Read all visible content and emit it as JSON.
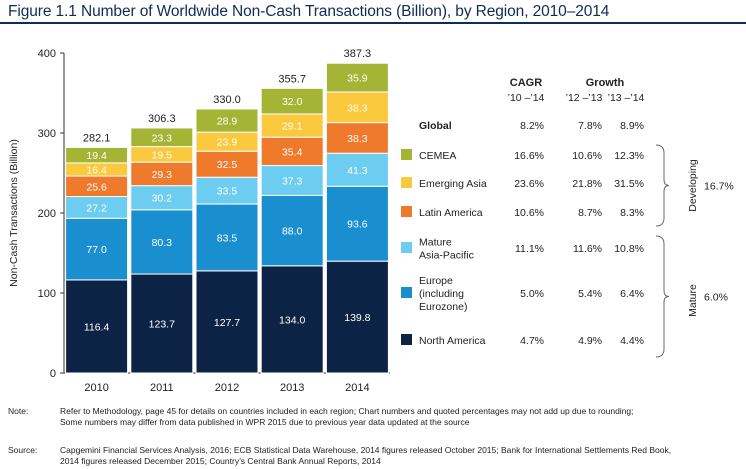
{
  "title": "Figure 1.1 Number of Worldwide Non-Cash Transactions (Billion), by Region, 2010–2014",
  "chart_data": {
    "type": "bar",
    "stacked": true,
    "ylabel": "Non-Cash Transactions (Billion)",
    "ylim": [
      0,
      400
    ],
    "yticks": [
      "0",
      "100",
      "200",
      "300",
      "400"
    ],
    "grid": false,
    "categories": [
      "2010",
      "2011",
      "2012",
      "2013",
      "2014"
    ],
    "totals": [
      "282.1",
      "306.3",
      "330.0",
      "355.7",
      "387.3"
    ],
    "series": [
      {
        "name": "North America",
        "color": "#0d2346",
        "values": [
          116.4,
          123.7,
          127.7,
          134.0,
          139.8
        ]
      },
      {
        "name": "Europe (including Eurozone)",
        "color": "#1a8fd0",
        "values": [
          77.0,
          80.3,
          83.5,
          88.0,
          93.6
        ]
      },
      {
        "name": "Mature Asia-Pacific",
        "color": "#6dcdf0",
        "values": [
          27.2,
          30.2,
          33.5,
          37.3,
          41.3
        ]
      },
      {
        "name": "Latin America",
        "color": "#ef7a2b",
        "values": [
          25.6,
          29.3,
          32.5,
          35.4,
          38.3
        ]
      },
      {
        "name": "Emerging Asia",
        "color": "#fbc93d",
        "values": [
          16.4,
          19.5,
          23.9,
          29.1,
          38.3
        ]
      },
      {
        "name": "CEMEA",
        "color": "#a4b536",
        "values": [
          19.4,
          23.3,
          28.9,
          32.0,
          35.9
        ]
      }
    ],
    "table": {
      "headers": {
        "cagr": "CAGR",
        "cagr_sub": "’10 –’14",
        "growth": "Growth",
        "g1": "’12 –’13",
        "g2": "’13 –’14"
      },
      "rows": [
        {
          "label": "Global",
          "label2": "",
          "color": "",
          "cagr": "8.2%",
          "g1": "7.8%",
          "g2": "8.9%"
        },
        {
          "label": "CEMEA",
          "label2": "",
          "color": "#a4b536",
          "cagr": "16.6%",
          "g1": "10.6%",
          "g2": "12.3%"
        },
        {
          "label": "Emerging Asia",
          "label2": "",
          "color": "#fbc93d",
          "cagr": "23.6%",
          "g1": "21.8%",
          "g2": "31.5%"
        },
        {
          "label": "Latin America",
          "label2": "",
          "color": "#ef7a2b",
          "cagr": "10.6%",
          "g1": "8.7%",
          "g2": "8.3%"
        },
        {
          "label": "Mature",
          "label2": "Asia-Pacific",
          "label3": "",
          "color": "#6dcdf0",
          "cagr": "11.1%",
          "g1": "11.6%",
          "g2": "10.8%"
        },
        {
          "label": "Europe",
          "label2": "(including",
          "label3": "Eurozone)",
          "color": "#1a8fd0",
          "cagr": "5.0%",
          "g1": "5.4%",
          "g2": "6.4%"
        },
        {
          "label": "North America",
          "label2": "",
          "color": "#0d2346",
          "cagr": "4.7%",
          "g1": "4.9%",
          "g2": "4.4%"
        }
      ],
      "groups": [
        {
          "name": "Developing",
          "value": "16.7%"
        },
        {
          "name": "Mature",
          "value": "6.0%"
        }
      ]
    }
  },
  "note": {
    "label": "Note:",
    "lines": [
      "Refer to Methodology, page 45 for details on countries included in each region; Chart numbers and quoted percentages may not add up due to rounding;",
      "Some numbers may differ from data published in WPR 2015 due to previous year data updated at the source"
    ]
  },
  "source": {
    "label": "Source:",
    "lines": [
      "Capgemini Financial Services Analysis, 2016; ECB Statistical Data Warehouse, 2014 figures released October 2015; Bank for International Settlements Red Book,",
      "2014 figures released December 2015; Country’s Central Bank Annual Reports, 2014"
    ]
  }
}
